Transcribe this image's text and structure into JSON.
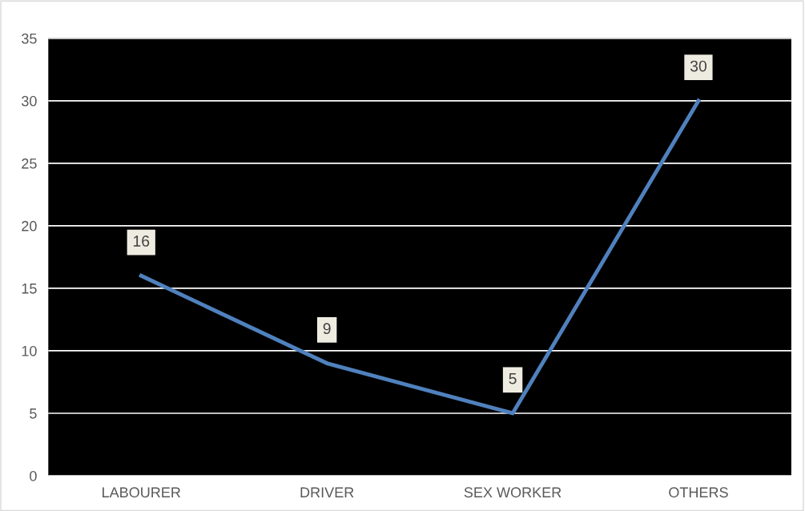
{
  "chart_data": {
    "type": "line",
    "categories": [
      "LABOURER",
      "DRIVER",
      "SEX WORKER",
      "OTHERS"
    ],
    "series": [
      {
        "color": "#4f81bd",
        "values": [
          16,
          9,
          5,
          30
        ]
      }
    ],
    "ylim": [
      0,
      35
    ],
    "yticks": [
      0,
      5,
      10,
      15,
      20,
      25,
      30,
      35
    ],
    "grid": "y",
    "data_labels": true,
    "marker": "none",
    "line_style": "solid"
  }
}
